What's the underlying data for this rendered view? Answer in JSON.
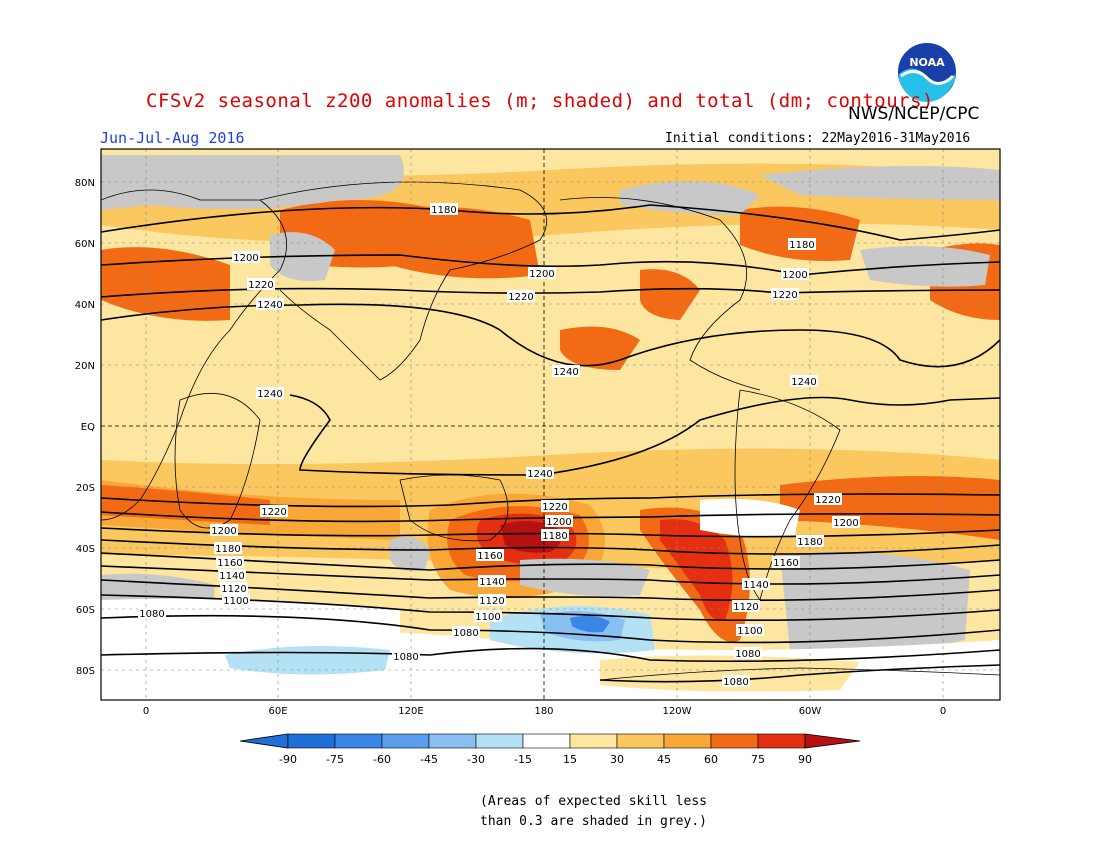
{
  "header": {
    "title": "CFSv2 seasonal z200 anomalies (m; shaded) and total (dm; contours)",
    "org": "NWS/NCEP/CPC",
    "season": "Jun-Jul-Aug 2016",
    "initial_conditions": "Initial conditions: 22May2016-31May2016",
    "logo_text": "NOAA"
  },
  "map": {
    "lat_labels": [
      "80N",
      "60N",
      "40N",
      "20N",
      "EQ",
      "20S",
      "40S",
      "60S",
      "80S"
    ],
    "lon_labels": [
      "0",
      "60E",
      "120E",
      "180",
      "120W",
      "60W",
      "0"
    ],
    "contour_labels": [
      "1180",
      "1200",
      "1220",
      "1240",
      "1200",
      "1220",
      "1240",
      "1180",
      "1200",
      "1220",
      "1240",
      "1240",
      "1240",
      "1220",
      "1200",
      "1180",
      "1160",
      "1140",
      "1120",
      "1100",
      "1080",
      "1080",
      "1220",
      "1200",
      "1180",
      "1160",
      "1140",
      "1120",
      "1100",
      "1080",
      "1080",
      "1220",
      "1200",
      "1180",
      "1160",
      "1140",
      "1120",
      "1100",
      "1080"
    ]
  },
  "colorbar": {
    "labels": [
      "-90",
      "-75",
      "-60",
      "-45",
      "-30",
      "-15",
      "15",
      "30",
      "45",
      "60",
      "75",
      "90"
    ],
    "colors": [
      "#1e6fd8",
      "#3a86e6",
      "#5aa0ee",
      "#88c0f2",
      "#b4e2f4",
      "#ffffff",
      "#fde6a0",
      "#fbc860",
      "#f9a838",
      "#f36a14",
      "#e43010",
      "#b81010"
    ]
  },
  "footnote": {
    "line1": "(Areas of expected skill less",
    "line2": "than 0.3 are shaded in grey.)"
  }
}
